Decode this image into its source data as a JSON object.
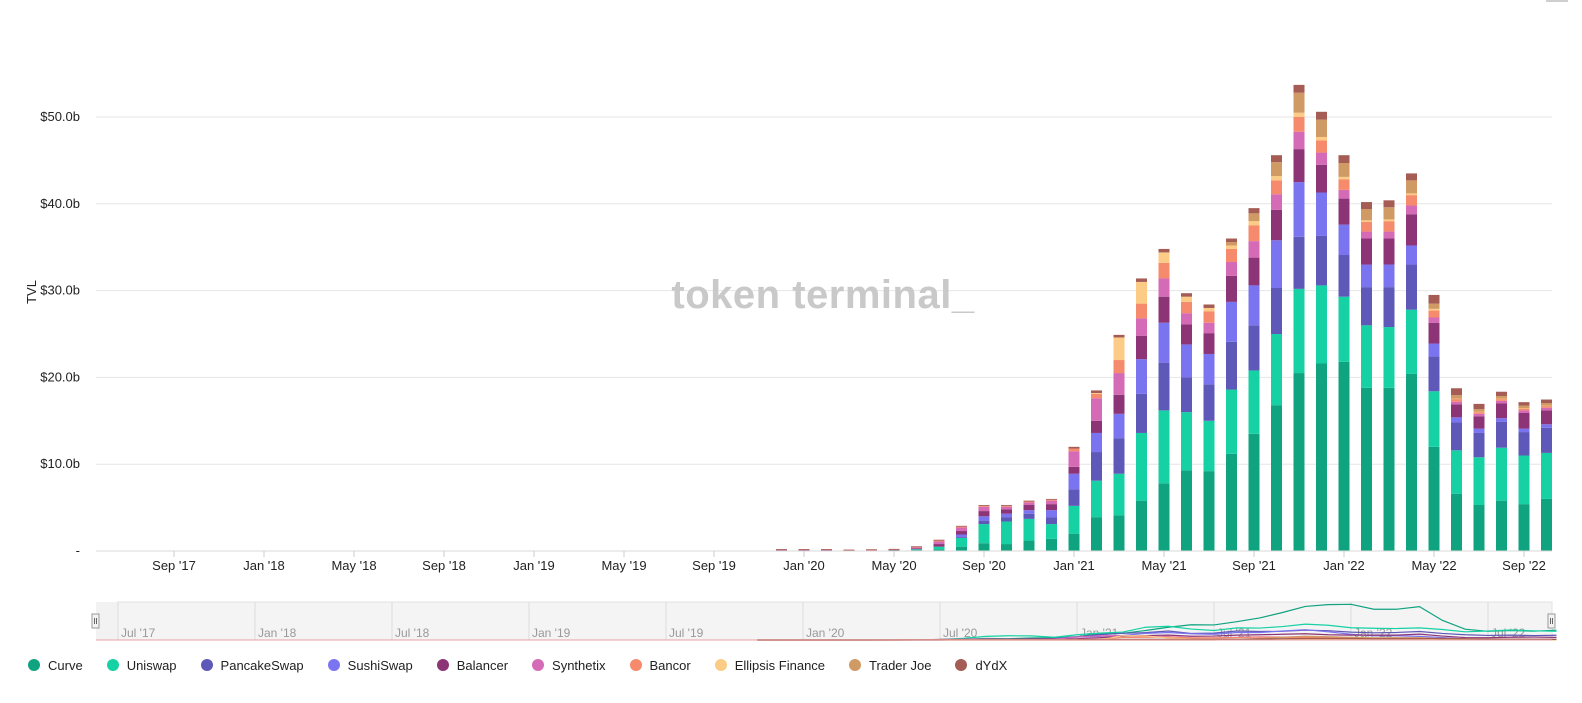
{
  "chart_data": {
    "type": "bar",
    "stacked": true,
    "ylabel": "TVL",
    "y_tick_labels": [
      "-",
      "$10.0b",
      "$20.0b",
      "$30.0b",
      "$40.0b",
      "$50.0b"
    ],
    "ylim": [
      0,
      53.5
    ],
    "watermark": "token terminal_",
    "x_tick_labels": [
      {
        "label": "Sep '17",
        "date": "2017-09"
      },
      {
        "label": "Jan '18",
        "date": "2018-01"
      },
      {
        "label": "May '18",
        "date": "2018-05"
      },
      {
        "label": "Sep '18",
        "date": "2018-09"
      },
      {
        "label": "Jan '19",
        "date": "2019-01"
      },
      {
        "label": "May '19",
        "date": "2019-05"
      },
      {
        "label": "Sep '19",
        "date": "2019-09"
      },
      {
        "label": "Jan '20",
        "date": "2020-01"
      },
      {
        "label": "May '20",
        "date": "2020-05"
      },
      {
        "label": "Sep '20",
        "date": "2020-09"
      },
      {
        "label": "Jan '21",
        "date": "2021-01"
      },
      {
        "label": "May '21",
        "date": "2021-05"
      },
      {
        "label": "Sep '21",
        "date": "2021-09"
      },
      {
        "label": "Jan '22",
        "date": "2022-01"
      },
      {
        "label": "May '22",
        "date": "2022-05"
      },
      {
        "label": "Sep '22",
        "date": "2022-09"
      }
    ],
    "categories": [
      "2019-12",
      "2020-01",
      "2020-02",
      "2020-03",
      "2020-04",
      "2020-05",
      "2020-06",
      "2020-07",
      "2020-08",
      "2020-09",
      "2020-10",
      "2020-11",
      "2020-12",
      "2021-01",
      "2021-02",
      "2021-03",
      "2021-04",
      "2021-05",
      "2021-06",
      "2021-07",
      "2021-08",
      "2021-09",
      "2021-10",
      "2021-11",
      "2021-12",
      "2022-01",
      "2022-02",
      "2022-03",
      "2022-04",
      "2022-05",
      "2022-06",
      "2022-07",
      "2022-08",
      "2022-09",
      "2022-10"
    ],
    "series": [
      {
        "name": "Curve",
        "color": "#0fa37f",
        "values": [
          0.05,
          0.05,
          0.05,
          0.02,
          0.03,
          0.05,
          0.1,
          0.2,
          0.5,
          0.9,
          0.8,
          1.2,
          1.4,
          2.0,
          3.9,
          4.1,
          5.8,
          7.8,
          9.3,
          9.2,
          11.2,
          13.5,
          16.8,
          20.5,
          21.6,
          21.8,
          18.8,
          18.8,
          20.4,
          12.0,
          6.6,
          5.3,
          5.8,
          5.4,
          6.0
        ]
      },
      {
        "name": "Uniswap",
        "color": "#15d1a4",
        "values": [
          0.02,
          0.02,
          0.02,
          0.01,
          0.02,
          0.03,
          0.1,
          0.3,
          1.0,
          2.2,
          2.6,
          2.5,
          1.7,
          3.2,
          4.2,
          4.8,
          7.8,
          8.4,
          6.7,
          5.8,
          7.4,
          7.3,
          8.2,
          9.7,
          9.0,
          7.5,
          7.2,
          7.0,
          7.4,
          6.4,
          5.0,
          5.5,
          6.1,
          5.6,
          5.3
        ]
      },
      {
        "name": "PancakeSwap",
        "color": "#5e58b8",
        "values": [
          0,
          0,
          0,
          0,
          0,
          0,
          0,
          0,
          0.1,
          0.4,
          0.5,
          0.6,
          0.8,
          1.9,
          3.3,
          4.1,
          4.5,
          5.5,
          4.0,
          4.2,
          5.5,
          5.2,
          5.3,
          6.0,
          5.7,
          4.8,
          4.4,
          4.6,
          5.2,
          4.0,
          3.2,
          2.8,
          3.0,
          2.7,
          2.9
        ]
      },
      {
        "name": "SushiSwap",
        "color": "#7b74f0",
        "values": [
          0,
          0,
          0,
          0,
          0,
          0,
          0,
          0,
          0.3,
          0.5,
          0.4,
          0.4,
          0.8,
          1.8,
          2.2,
          2.8,
          4.0,
          4.6,
          3.8,
          3.5,
          4.6,
          4.6,
          5.5,
          6.3,
          5.0,
          3.5,
          2.6,
          2.6,
          2.2,
          1.5,
          0.6,
          0.5,
          0.4,
          0.4,
          0.4
        ]
      },
      {
        "name": "Balancer",
        "color": "#8c3476",
        "values": [
          0.02,
          0.02,
          0.02,
          0.01,
          0.02,
          0.03,
          0.1,
          0.3,
          0.4,
          0.6,
          0.5,
          0.6,
          0.7,
          0.8,
          1.4,
          2.2,
          2.7,
          3.0,
          2.3,
          2.4,
          3.0,
          3.2,
          3.5,
          3.8,
          3.2,
          3.0,
          3.0,
          3.0,
          3.6,
          2.4,
          1.5,
          1.4,
          1.7,
          1.8,
          1.6
        ]
      },
      {
        "name": "Synthetix",
        "color": "#d56ab6",
        "values": [
          0.02,
          0.02,
          0.02,
          0.01,
          0.02,
          0.02,
          0.1,
          0.3,
          0.4,
          0.5,
          0.3,
          0.3,
          0.4,
          1.8,
          2.6,
          2.5,
          2.0,
          2.1,
          1.3,
          1.2,
          1.6,
          1.9,
          1.8,
          2.0,
          1.4,
          1.0,
          0.8,
          0.8,
          1.0,
          0.6,
          0.3,
          0.3,
          0.3,
          0.3,
          0.3
        ]
      },
      {
        "name": "Bancor",
        "color": "#f58a6d",
        "values": [
          0.01,
          0.01,
          0.01,
          0.01,
          0.01,
          0.02,
          0.05,
          0.1,
          0.1,
          0.1,
          0.1,
          0.1,
          0.1,
          0.3,
          0.5,
          1.5,
          1.7,
          1.8,
          1.3,
          1.3,
          1.5,
          1.8,
          1.6,
          1.7,
          1.4,
          1.2,
          1.1,
          1.2,
          1.2,
          0.8,
          0.3,
          0.2,
          0.2,
          0.2,
          0.2
        ]
      },
      {
        "name": "Ellipsis Finance",
        "color": "#fccb85",
        "values": [
          0,
          0,
          0,
          0,
          0,
          0,
          0,
          0,
          0,
          0,
          0,
          0,
          0,
          0,
          0.1,
          2.6,
          2.5,
          1.2,
          0.6,
          0.4,
          0.4,
          0.5,
          0.5,
          0.5,
          0.4,
          0.3,
          0.2,
          0.2,
          0.2,
          0.2,
          0.05,
          0.05,
          0.05,
          0.05,
          0.05
        ]
      },
      {
        "name": "Trader Joe",
        "color": "#d09a64",
        "values": [
          0,
          0,
          0,
          0,
          0,
          0,
          0,
          0,
          0,
          0,
          0,
          0,
          0,
          0,
          0,
          0,
          0,
          0,
          0,
          0,
          0.4,
          0.9,
          1.6,
          2.3,
          2.0,
          1.6,
          1.3,
          1.4,
          1.5,
          0.6,
          0.4,
          0.3,
          0.3,
          0.3,
          0.3
        ]
      },
      {
        "name": "dYdX",
        "color": "#a45c55",
        "values": [
          0.01,
          0.01,
          0.01,
          0.01,
          0.01,
          0.02,
          0.05,
          0.1,
          0.1,
          0.1,
          0.1,
          0.1,
          0.1,
          0.2,
          0.3,
          0.3,
          0.4,
          0.4,
          0.4,
          0.4,
          0.4,
          0.6,
          0.8,
          0.9,
          0.9,
          0.9,
          0.8,
          0.8,
          0.8,
          1.0,
          0.8,
          0.6,
          0.5,
          0.4,
          0.4
        ]
      }
    ],
    "navigator": {
      "tick_labels": [
        "Jul '17",
        "Jan '18",
        "Jul '18",
        "Jan '19",
        "Jul '19",
        "Jan '20",
        "Jul '20",
        "Jan '21",
        "Jul '21",
        "Jan '22",
        "Jul '22"
      ]
    },
    "legend_position": "bottom-left",
    "grid": true
  }
}
